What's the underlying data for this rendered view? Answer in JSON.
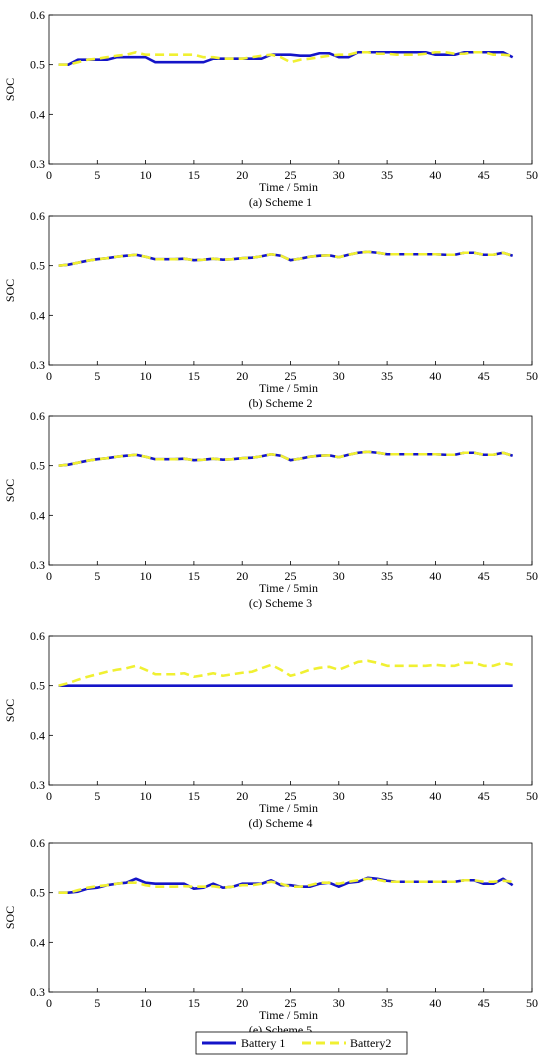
{
  "colors": {
    "battery1": "#1414c8",
    "battery2": "#f0f032",
    "axis": "#000000"
  },
  "legend": {
    "placement": "bottom-center",
    "items": [
      {
        "label": "Battery 1",
        "color": "#1414c8",
        "style": "solid"
      },
      {
        "label": "Battery2",
        "color": "#f0f032",
        "style": "dashed"
      }
    ]
  },
  "chart_data": [
    {
      "type": "line",
      "caption": "(a) Scheme 1",
      "xlabel": "Time / 5min",
      "ylabel": "SOC",
      "xlim": [
        0,
        50
      ],
      "ylim": [
        0.3,
        0.6
      ],
      "xticks": [
        "0",
        "5",
        "10",
        "15",
        "20",
        "25",
        "30",
        "35",
        "40",
        "45",
        "50"
      ],
      "yticks": [
        "0.3",
        "0.4",
        "0.5",
        "0.6"
      ],
      "x": [
        1,
        2,
        3,
        4,
        5,
        6,
        7,
        8,
        9,
        10,
        11,
        12,
        13,
        14,
        15,
        16,
        17,
        18,
        19,
        20,
        21,
        22,
        23,
        24,
        25,
        26,
        27,
        28,
        29,
        30,
        31,
        32,
        33,
        34,
        35,
        36,
        37,
        38,
        39,
        40,
        41,
        42,
        43,
        44,
        45,
        46,
        47,
        48
      ],
      "series": [
        {
          "name": "Battery 1",
          "values": [
            0.5,
            0.5,
            0.51,
            0.51,
            0.51,
            0.51,
            0.515,
            0.515,
            0.515,
            0.515,
            0.505,
            0.505,
            0.505,
            0.505,
            0.505,
            0.505,
            0.512,
            0.512,
            0.512,
            0.512,
            0.512,
            0.512,
            0.52,
            0.52,
            0.52,
            0.518,
            0.518,
            0.523,
            0.523,
            0.515,
            0.515,
            0.525,
            0.525,
            0.525,
            0.525,
            0.525,
            0.525,
            0.525,
            0.525,
            0.52,
            0.52,
            0.52,
            0.525,
            0.525,
            0.525,
            0.525,
            0.525,
            0.515
          ]
        },
        {
          "name": "Battery2",
          "values": [
            0.5,
            0.5,
            0.505,
            0.51,
            0.512,
            0.515,
            0.518,
            0.52,
            0.525,
            0.52,
            0.52,
            0.52,
            0.52,
            0.52,
            0.52,
            0.515,
            0.515,
            0.512,
            0.512,
            0.512,
            0.515,
            0.518,
            0.52,
            0.515,
            0.505,
            0.51,
            0.512,
            0.515,
            0.518,
            0.52,
            0.52,
            0.525,
            0.525,
            0.522,
            0.522,
            0.52,
            0.52,
            0.52,
            0.522,
            0.525,
            0.525,
            0.522,
            0.522,
            0.525,
            0.525,
            0.52,
            0.52,
            0.518
          ]
        }
      ]
    },
    {
      "type": "line",
      "caption": "(b) Scheme 2",
      "xlabel": "Time / 5min",
      "ylabel": "SOC",
      "xlim": [
        0,
        50
      ],
      "ylim": [
        0.3,
        0.6
      ],
      "xticks": [
        "0",
        "5",
        "10",
        "15",
        "20",
        "25",
        "30",
        "35",
        "40",
        "45",
        "50"
      ],
      "yticks": [
        "0.3",
        "0.4",
        "0.5",
        "0.6"
      ],
      "x": [
        1,
        2,
        3,
        4,
        5,
        6,
        7,
        8,
        9,
        10,
        11,
        12,
        13,
        14,
        15,
        16,
        17,
        18,
        19,
        20,
        21,
        22,
        23,
        24,
        25,
        26,
        27,
        28,
        29,
        30,
        31,
        32,
        33,
        34,
        35,
        36,
        37,
        38,
        39,
        40,
        41,
        42,
        43,
        44,
        45,
        46,
        47,
        48
      ],
      "series": [
        {
          "name": "Battery 1",
          "values": [
            0.5,
            0.502,
            0.506,
            0.51,
            0.513,
            0.515,
            0.518,
            0.52,
            0.522,
            0.518,
            0.513,
            0.513,
            0.513,
            0.514,
            0.511,
            0.512,
            0.514,
            0.512,
            0.513,
            0.515,
            0.516,
            0.519,
            0.523,
            0.52,
            0.511,
            0.514,
            0.518,
            0.52,
            0.521,
            0.517,
            0.522,
            0.526,
            0.528,
            0.526,
            0.523,
            0.523,
            0.523,
            0.523,
            0.523,
            0.523,
            0.522,
            0.522,
            0.526,
            0.526,
            0.522,
            0.522,
            0.526,
            0.52
          ]
        },
        {
          "name": "Battery2",
          "values": [
            0.5,
            0.502,
            0.506,
            0.51,
            0.513,
            0.515,
            0.518,
            0.52,
            0.522,
            0.518,
            0.513,
            0.513,
            0.513,
            0.514,
            0.511,
            0.512,
            0.514,
            0.512,
            0.513,
            0.515,
            0.516,
            0.519,
            0.523,
            0.52,
            0.511,
            0.514,
            0.518,
            0.52,
            0.521,
            0.517,
            0.522,
            0.526,
            0.528,
            0.526,
            0.523,
            0.523,
            0.523,
            0.523,
            0.523,
            0.523,
            0.522,
            0.522,
            0.526,
            0.526,
            0.522,
            0.522,
            0.526,
            0.52
          ]
        }
      ]
    },
    {
      "type": "line",
      "caption": "(c) Scheme 3",
      "xlabel": "Time / 5min",
      "ylabel": "SOC",
      "xlim": [
        0,
        50
      ],
      "ylim": [
        0.3,
        0.6
      ],
      "xticks": [
        "0",
        "5",
        "10",
        "15",
        "20",
        "25",
        "30",
        "35",
        "40",
        "45",
        "50"
      ],
      "yticks": [
        "0.3",
        "0.4",
        "0.5",
        "0.6"
      ],
      "x": [
        1,
        2,
        3,
        4,
        5,
        6,
        7,
        8,
        9,
        10,
        11,
        12,
        13,
        14,
        15,
        16,
        17,
        18,
        19,
        20,
        21,
        22,
        23,
        24,
        25,
        26,
        27,
        28,
        29,
        30,
        31,
        32,
        33,
        34,
        35,
        36,
        37,
        38,
        39,
        40,
        41,
        42,
        43,
        44,
        45,
        46,
        47,
        48
      ],
      "series": [
        {
          "name": "Battery 1",
          "values": [
            0.5,
            0.502,
            0.506,
            0.51,
            0.513,
            0.515,
            0.518,
            0.52,
            0.522,
            0.518,
            0.513,
            0.513,
            0.513,
            0.514,
            0.511,
            0.512,
            0.514,
            0.512,
            0.513,
            0.515,
            0.516,
            0.519,
            0.523,
            0.52,
            0.511,
            0.514,
            0.518,
            0.52,
            0.521,
            0.517,
            0.522,
            0.526,
            0.528,
            0.526,
            0.523,
            0.523,
            0.523,
            0.523,
            0.523,
            0.523,
            0.522,
            0.522,
            0.526,
            0.526,
            0.522,
            0.522,
            0.526,
            0.52
          ]
        },
        {
          "name": "Battery2",
          "values": [
            0.5,
            0.502,
            0.506,
            0.51,
            0.513,
            0.515,
            0.518,
            0.52,
            0.522,
            0.518,
            0.513,
            0.513,
            0.513,
            0.514,
            0.511,
            0.512,
            0.514,
            0.512,
            0.513,
            0.515,
            0.516,
            0.519,
            0.523,
            0.52,
            0.511,
            0.514,
            0.518,
            0.52,
            0.521,
            0.517,
            0.522,
            0.526,
            0.528,
            0.526,
            0.523,
            0.523,
            0.523,
            0.523,
            0.523,
            0.523,
            0.522,
            0.522,
            0.526,
            0.526,
            0.522,
            0.522,
            0.526,
            0.52
          ]
        }
      ]
    },
    {
      "type": "line",
      "caption": "(d) Scheme 4",
      "xlabel": "Time / 5min",
      "ylabel": "SOC",
      "xlim": [
        0,
        50
      ],
      "ylim": [
        0.3,
        0.6
      ],
      "xticks": [
        "0",
        "5",
        "10",
        "15",
        "20",
        "25",
        "30",
        "35",
        "40",
        "45",
        "50"
      ],
      "yticks": [
        "0.3",
        "0.4",
        "0.5",
        "0.6"
      ],
      "x": [
        1,
        2,
        3,
        4,
        5,
        6,
        7,
        8,
        9,
        10,
        11,
        12,
        13,
        14,
        15,
        16,
        17,
        18,
        19,
        20,
        21,
        22,
        23,
        24,
        25,
        26,
        27,
        28,
        29,
        30,
        31,
        32,
        33,
        34,
        35,
        36,
        37,
        38,
        39,
        40,
        41,
        42,
        43,
        44,
        45,
        46,
        47,
        48
      ],
      "series": [
        {
          "name": "Battery 1",
          "values": [
            0.5,
            0.5,
            0.5,
            0.5,
            0.5,
            0.5,
            0.5,
            0.5,
            0.5,
            0.5,
            0.5,
            0.5,
            0.5,
            0.5,
            0.5,
            0.5,
            0.5,
            0.5,
            0.5,
            0.5,
            0.5,
            0.5,
            0.5,
            0.5,
            0.5,
            0.5,
            0.5,
            0.5,
            0.5,
            0.5,
            0.5,
            0.5,
            0.5,
            0.5,
            0.5,
            0.5,
            0.5,
            0.5,
            0.5,
            0.5,
            0.5,
            0.5,
            0.5,
            0.5,
            0.5,
            0.5,
            0.5,
            0.5
          ]
        },
        {
          "name": "Battery2",
          "values": [
            0.5,
            0.505,
            0.512,
            0.518,
            0.523,
            0.528,
            0.532,
            0.535,
            0.54,
            0.532,
            0.523,
            0.523,
            0.523,
            0.525,
            0.518,
            0.521,
            0.525,
            0.52,
            0.523,
            0.526,
            0.528,
            0.535,
            0.542,
            0.532,
            0.52,
            0.525,
            0.532,
            0.536,
            0.538,
            0.532,
            0.54,
            0.548,
            0.55,
            0.546,
            0.54,
            0.54,
            0.54,
            0.54,
            0.54,
            0.542,
            0.54,
            0.54,
            0.546,
            0.546,
            0.54,
            0.54,
            0.546,
            0.542
          ]
        }
      ]
    },
    {
      "type": "line",
      "caption": "(e) Scheme 5",
      "xlabel": "Time / 5min",
      "ylabel": "SOC",
      "xlim": [
        0,
        50
      ],
      "ylim": [
        0.3,
        0.6
      ],
      "xticks": [
        "0",
        "5",
        "10",
        "15",
        "20",
        "25",
        "30",
        "35",
        "40",
        "45",
        "50"
      ],
      "yticks": [
        "0.3",
        "0.4",
        "0.5",
        "0.6"
      ],
      "x": [
        1,
        2,
        3,
        4,
        5,
        6,
        7,
        8,
        9,
        10,
        11,
        12,
        13,
        14,
        15,
        16,
        17,
        18,
        19,
        20,
        21,
        22,
        23,
        24,
        25,
        26,
        27,
        28,
        29,
        30,
        31,
        32,
        33,
        34,
        35,
        36,
        37,
        38,
        39,
        40,
        41,
        42,
        43,
        44,
        45,
        46,
        47,
        48
      ],
      "series": [
        {
          "name": "Battery 1",
          "values": [
            0.5,
            0.5,
            0.502,
            0.508,
            0.51,
            0.515,
            0.518,
            0.52,
            0.528,
            0.52,
            0.518,
            0.518,
            0.518,
            0.518,
            0.508,
            0.51,
            0.518,
            0.51,
            0.512,
            0.518,
            0.518,
            0.518,
            0.525,
            0.515,
            0.515,
            0.512,
            0.512,
            0.518,
            0.52,
            0.512,
            0.52,
            0.522,
            0.53,
            0.528,
            0.524,
            0.522,
            0.522,
            0.522,
            0.522,
            0.522,
            0.522,
            0.522,
            0.525,
            0.525,
            0.518,
            0.518,
            0.528,
            0.515
          ]
        },
        {
          "name": "Battery2",
          "values": [
            0.5,
            0.5,
            0.505,
            0.51,
            0.513,
            0.515,
            0.518,
            0.52,
            0.52,
            0.515,
            0.512,
            0.512,
            0.512,
            0.513,
            0.512,
            0.512,
            0.513,
            0.51,
            0.512,
            0.515,
            0.515,
            0.518,
            0.522,
            0.518,
            0.512,
            0.512,
            0.515,
            0.52,
            0.52,
            0.518,
            0.522,
            0.525,
            0.528,
            0.526,
            0.522,
            0.522,
            0.522,
            0.522,
            0.522,
            0.522,
            0.522,
            0.522,
            0.525,
            0.525,
            0.522,
            0.522,
            0.524,
            0.522
          ]
        }
      ]
    }
  ]
}
